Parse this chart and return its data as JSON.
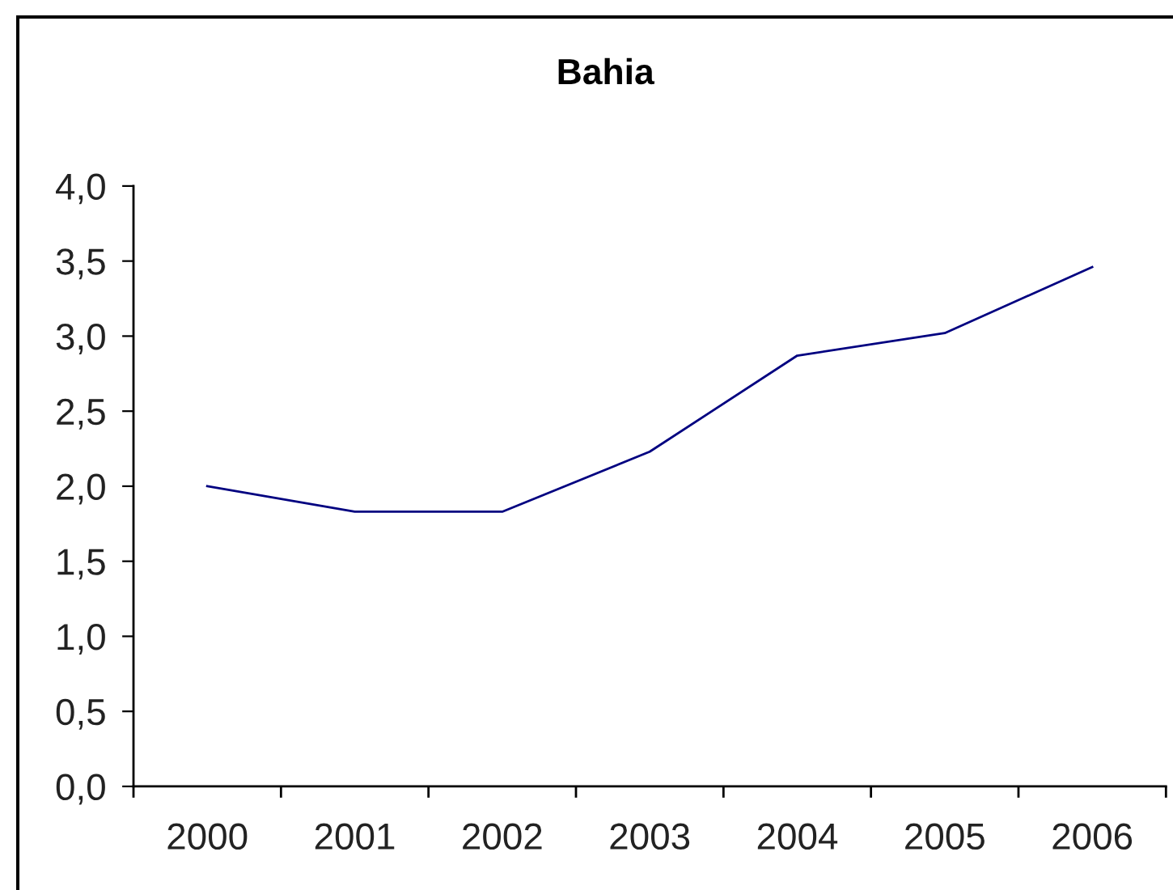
{
  "chart_data": {
    "type": "line",
    "title": "Bahia",
    "categories": [
      "2000",
      "2001",
      "2002",
      "2003",
      "2004",
      "2005",
      "2006"
    ],
    "series": [
      {
        "color": "#000080",
        "values": [
          2.0,
          1.83,
          1.83,
          2.23,
          2.87,
          3.02,
          3.46
        ]
      }
    ],
    "ylim": [
      0,
      4
    ],
    "yticks": [
      {
        "value": 0,
        "label": "0,0"
      },
      {
        "value": 0.5,
        "label": "0,5"
      },
      {
        "value": 1,
        "label": "1,0"
      },
      {
        "value": 1.5,
        "label": "1,5"
      },
      {
        "value": 2,
        "label": "2,0"
      },
      {
        "value": 2.5,
        "label": "2,5"
      },
      {
        "value": 3,
        "label": "3,0"
      },
      {
        "value": 3.5,
        "label": "3,5"
      },
      {
        "value": 4,
        "label": "4,0"
      }
    ],
    "line_style": "solid"
  }
}
